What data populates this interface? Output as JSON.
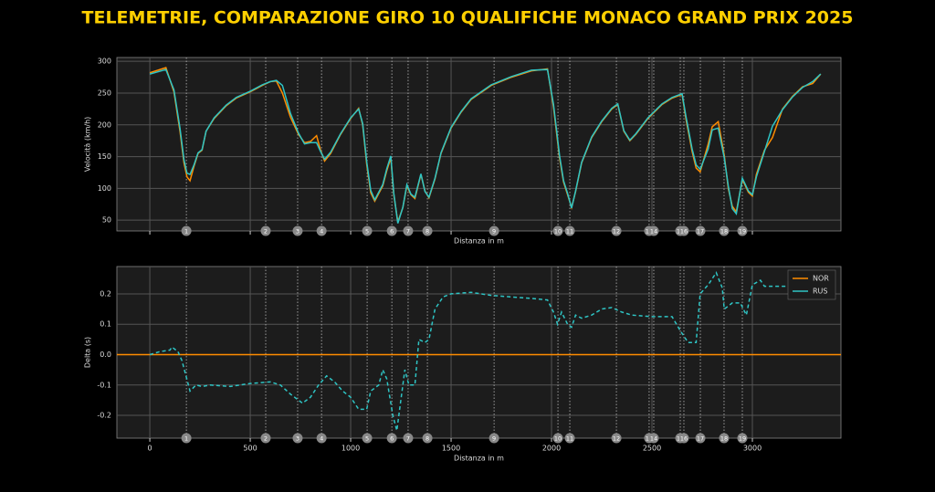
{
  "title": "TELEMETRIE, COMPARAZIONE GIRO 10 QUALIFICHE MONACO GRAND PRIX 2025",
  "corners": {
    "numbers": [
      1,
      2,
      3,
      4,
      5,
      6,
      7,
      8,
      9,
      10,
      11,
      12,
      13,
      14,
      15,
      16,
      17,
      18,
      19
    ],
    "distance": [
      182,
      577,
      736,
      855,
      1082,
      1205,
      1286,
      1382,
      1714,
      2032,
      2091,
      2323,
      2486,
      2509,
      2641,
      2659,
      2741,
      2859,
      2950
    ]
  },
  "chart_data": [
    {
      "type": "line",
      "ylabel": "Velocità (km/h)",
      "xlabel": "Distanza in m",
      "xlim": [
        -164,
        3441
      ],
      "xticks": [
        0,
        500,
        1000,
        1500,
        2000,
        2500,
        3000
      ],
      "ylim": [
        33,
        306
      ],
      "yticks": [
        50,
        100,
        150,
        200,
        250,
        300
      ],
      "grid": true,
      "x": [
        0,
        80,
        120,
        150,
        170,
        185,
        200,
        220,
        240,
        260,
        280,
        320,
        380,
        430,
        500,
        560,
        600,
        630,
        660,
        700,
        740,
        770,
        800,
        830,
        850,
        870,
        900,
        950,
        1000,
        1040,
        1060,
        1080,
        1100,
        1120,
        1160,
        1180,
        1200,
        1215,
        1235,
        1260,
        1280,
        1300,
        1320,
        1350,
        1370,
        1390,
        1420,
        1450,
        1500,
        1550,
        1600,
        1700,
        1800,
        1900,
        1980,
        2010,
        2040,
        2060,
        2080,
        2100,
        2120,
        2150,
        2200,
        2250,
        2300,
        2330,
        2360,
        2390,
        2420,
        2480,
        2550,
        2600,
        2650,
        2670,
        2700,
        2720,
        2740,
        2780,
        2800,
        2830,
        2860,
        2880,
        2900,
        2920,
        2950,
        2980,
        3000,
        3020,
        3060,
        3100,
        3150,
        3200,
        3250,
        3300,
        3340
      ],
      "series": [
        {
          "name": "NOR",
          "color": "#ff8c00",
          "values": [
            282,
            290,
            252,
            190,
            140,
            118,
            112,
            135,
            155,
            160,
            190,
            210,
            230,
            242,
            252,
            262,
            268,
            269,
            250,
            212,
            185,
            172,
            174,
            183,
            160,
            143,
            155,
            185,
            210,
            226,
            200,
            138,
            93,
            80,
            104,
            128,
            148,
            90,
            47,
            70,
            104,
            90,
            84,
            122,
            96,
            85,
            115,
            155,
            195,
            220,
            240,
            262,
            275,
            285,
            288,
            228,
            148,
            110,
            90,
            70,
            95,
            140,
            180,
            205,
            225,
            232,
            190,
            175,
            185,
            210,
            232,
            242,
            248,
            208,
            158,
            132,
            126,
            170,
            197,
            205,
            152,
            100,
            72,
            63,
            114,
            94,
            88,
            122,
            160,
            180,
            225,
            245,
            260,
            265,
            280
          ]
        },
        {
          "name": "RUS",
          "color": "#2ec4c4",
          "values": [
            280,
            287,
            255,
            195,
            145,
            124,
            122,
            137,
            156,
            161,
            190,
            211,
            231,
            243,
            253,
            263,
            268,
            270,
            262,
            218,
            187,
            170,
            172,
            172,
            158,
            146,
            157,
            186,
            211,
            225,
            202,
            142,
            97,
            82,
            106,
            131,
            151,
            92,
            45,
            70,
            106,
            91,
            86,
            123,
            95,
            86,
            116,
            156,
            196,
            221,
            241,
            263,
            276,
            286,
            287,
            232,
            152,
            112,
            92,
            69,
            96,
            141,
            181,
            206,
            226,
            233,
            191,
            176,
            186,
            211,
            233,
            243,
            249,
            212,
            162,
            137,
            130,
            162,
            192,
            195,
            148,
            104,
            68,
            60,
            116,
            96,
            90,
            118,
            158,
            198,
            224,
            244,
            259,
            268,
            280
          ]
        }
      ]
    },
    {
      "type": "line",
      "ylabel": "Delta (s)",
      "xlabel": "Distanza in m",
      "xlim": [
        -164,
        3441
      ],
      "xticks": [
        0,
        500,
        1000,
        1500,
        2000,
        2500,
        3000
      ],
      "ylim": [
        -0.275,
        0.29
      ],
      "yticks": [
        -0.2,
        -0.1,
        {
          "value": 0,
          "label": "0.0"
        },
        0.1,
        0.2
      ],
      "grid": true,
      "legend": "upper right",
      "x": [
        0,
        50,
        100,
        110,
        140,
        160,
        180,
        200,
        230,
        260,
        300,
        400,
        500,
        600,
        650,
        700,
        740,
        760,
        800,
        840,
        880,
        920,
        960,
        1000,
        1040,
        1080,
        1100,
        1140,
        1160,
        1180,
        1210,
        1230,
        1250,
        1270,
        1290,
        1320,
        1340,
        1370,
        1390,
        1420,
        1460,
        1500,
        1600,
        1700,
        1800,
        1900,
        1980,
        2010,
        2030,
        2050,
        2080,
        2100,
        2120,
        2150,
        2200,
        2250,
        2300,
        2350,
        2400,
        2500,
        2600,
        2640,
        2680,
        2720,
        2740,
        2780,
        2820,
        2850,
        2860,
        2900,
        2940,
        2970,
        3000,
        3040,
        3060,
        3100,
        3200,
        3300
      ],
      "series": [
        {
          "name": "NOR",
          "color": "#ff8c00",
          "reference": 0
        },
        {
          "name": "RUS",
          "color": "#2ec4c4",
          "dashed": true,
          "values": [
            0,
            0.01,
            0.015,
            0.025,
            0.01,
            -0.02,
            -0.07,
            -0.12,
            -0.1,
            -0.105,
            -0.1,
            -0.105,
            -0.095,
            -0.09,
            -0.1,
            -0.13,
            -0.15,
            -0.16,
            -0.14,
            -0.1,
            -0.07,
            -0.09,
            -0.12,
            -0.14,
            -0.18,
            -0.18,
            -0.12,
            -0.1,
            -0.05,
            -0.08,
            -0.2,
            -0.25,
            -0.15,
            -0.05,
            -0.1,
            -0.1,
            0.05,
            0.04,
            0.05,
            0.15,
            0.19,
            0.2,
            0.205,
            0.195,
            0.19,
            0.185,
            0.18,
            0.14,
            0.1,
            0.14,
            0.1,
            0.09,
            0.13,
            0.12,
            0.13,
            0.15,
            0.155,
            0.14,
            0.13,
            0.125,
            0.125,
            0.08,
            0.04,
            0.04,
            0.2,
            0.23,
            0.27,
            0.22,
            0.15,
            0.17,
            0.17,
            0.13,
            0.23,
            0.245,
            0.225,
            0.225,
            0.225,
            0.23
          ]
        }
      ]
    }
  ]
}
